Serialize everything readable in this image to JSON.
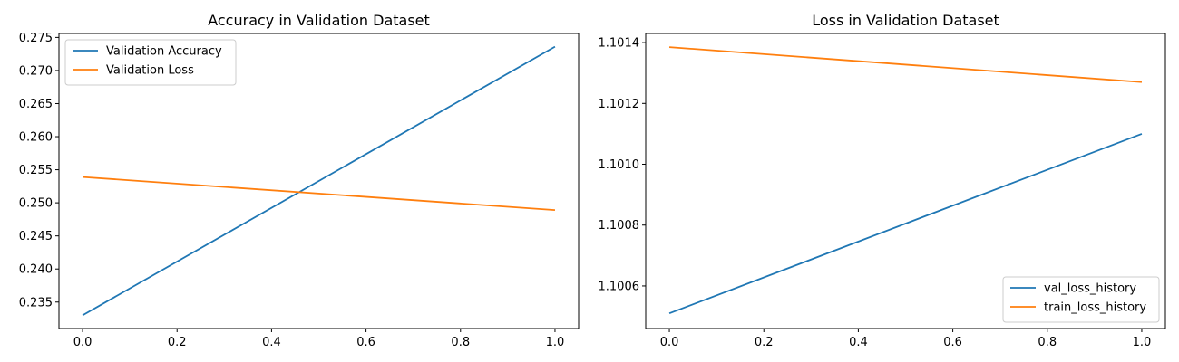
{
  "chart_data": [
    {
      "type": "line",
      "title": "Accuracy in Validation Dataset",
      "xlabel": "",
      "ylabel": "",
      "xlim": [
        -0.05,
        1.05
      ],
      "ylim": [
        0.231,
        0.2756
      ],
      "xticks": [
        "0.0",
        "0.2",
        "0.4",
        "0.6",
        "0.8",
        "1.0"
      ],
      "yticks": [
        "0.235",
        "0.240",
        "0.245",
        "0.250",
        "0.255",
        "0.260",
        "0.265",
        "0.270",
        "0.275"
      ],
      "grid": false,
      "legend_placement": "upper-left",
      "series": [
        {
          "name": "Validation Accuracy",
          "color": "#1f77b4",
          "x": [
            0.0,
            1.0
          ],
          "y": [
            0.233,
            0.2736
          ]
        },
        {
          "name": "Validation Loss",
          "color": "#ff7f0e",
          "x": [
            0.0,
            1.0
          ],
          "y": [
            0.2539,
            0.2489
          ]
        }
      ]
    },
    {
      "type": "line",
      "title": "Loss in Validation Dataset",
      "xlabel": "",
      "ylabel": "",
      "xlim": [
        -0.05,
        1.05
      ],
      "ylim": [
        1.10046,
        1.10143
      ],
      "xticks": [
        "0.0",
        "0.2",
        "0.4",
        "0.6",
        "0.8",
        "1.0"
      ],
      "yticks": [
        "1.1006",
        "1.1008",
        "1.1010",
        "1.1012",
        "1.1014"
      ],
      "grid": false,
      "legend_placement": "lower-right",
      "series": [
        {
          "name": "val_loss_history",
          "color": "#1f77b4",
          "x": [
            0.0,
            1.0
          ],
          "y": [
            1.10051,
            1.1011
          ]
        },
        {
          "name": "train_loss_history",
          "color": "#ff7f0e",
          "x": [
            0.0,
            1.0
          ],
          "y": [
            1.101385,
            1.10127
          ]
        }
      ]
    }
  ]
}
